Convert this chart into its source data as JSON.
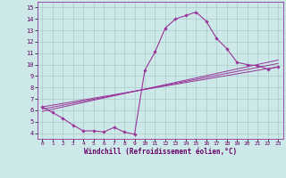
{
  "xlabel": "Windchill (Refroidissement éolien,°C)",
  "background_color": "#cce8e8",
  "grid_color": "#aacccc",
  "line_color": "#993399",
  "xlim": [
    -0.5,
    23.5
  ],
  "ylim": [
    3.5,
    15.5
  ],
  "xticks": [
    0,
    1,
    2,
    3,
    4,
    5,
    6,
    7,
    8,
    9,
    10,
    11,
    12,
    13,
    14,
    15,
    16,
    17,
    18,
    19,
    20,
    21,
    22,
    23
  ],
  "yticks": [
    4,
    5,
    6,
    7,
    8,
    9,
    10,
    11,
    12,
    13,
    14,
    15
  ],
  "series1_x": [
    0,
    1,
    2,
    3,
    4,
    5,
    6,
    7,
    8,
    9,
    10,
    11,
    12,
    13,
    14,
    15,
    16,
    17,
    18,
    19,
    20,
    21,
    22,
    23
  ],
  "series1_y": [
    6.3,
    5.8,
    5.3,
    4.7,
    4.2,
    4.2,
    4.1,
    4.5,
    4.1,
    3.9,
    9.5,
    11.1,
    13.2,
    14.0,
    14.3,
    14.6,
    13.8,
    12.3,
    11.4,
    10.2,
    10.0,
    9.9,
    9.6,
    9.8
  ],
  "trend1_x": [
    0,
    23
  ],
  "trend1_y": [
    6.3,
    9.8
  ],
  "trend2_x": [
    0,
    23
  ],
  "trend2_y": [
    6.1,
    10.1
  ],
  "trend3_x": [
    0,
    23
  ],
  "trend3_y": [
    5.9,
    10.4
  ]
}
